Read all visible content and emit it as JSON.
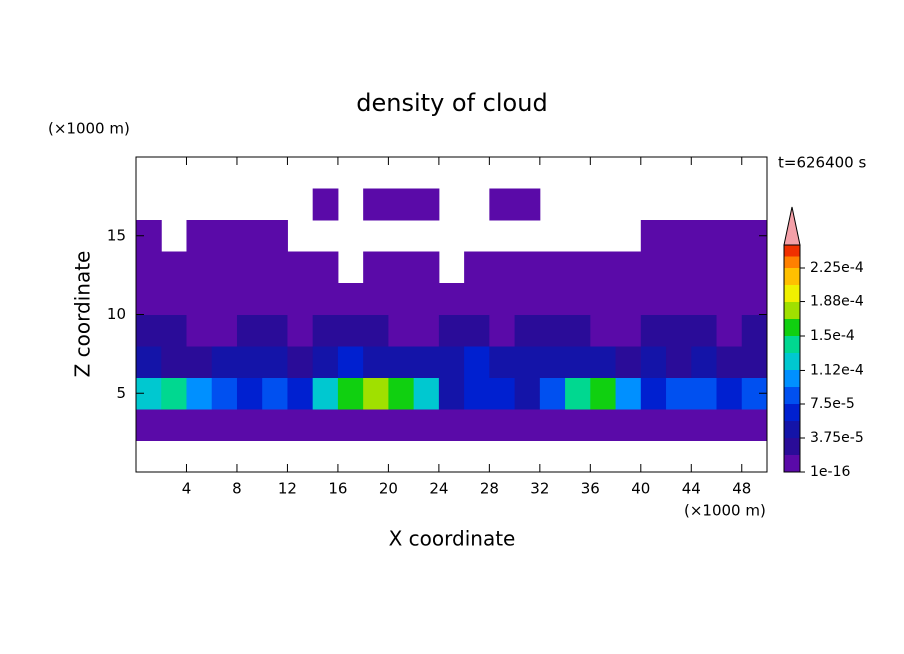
{
  "chart_data": {
    "type": "contour",
    "title": "density of cloud",
    "time_label": "t=626400 s",
    "x_label": "X coordinate",
    "y_label": "Z coordinate",
    "x_unit": "(×1000 m)",
    "y_unit": "(×1000 m)",
    "xlim": [
      0,
      50
    ],
    "ylim": [
      0,
      20
    ],
    "xticks": [
      4,
      8,
      12,
      16,
      20,
      24,
      28,
      32,
      36,
      40,
      44,
      48
    ],
    "yticks": [
      5,
      10,
      15
    ],
    "x": [
      1,
      3,
      5,
      7,
      9,
      11,
      13,
      15,
      17,
      19,
      21,
      23,
      25,
      27,
      29,
      31,
      33,
      35,
      37,
      39,
      41,
      43,
      45,
      47,
      49
    ],
    "y": [
      1,
      3,
      5,
      7,
      9,
      11,
      13,
      15,
      17,
      19
    ],
    "z": [
      [
        null,
        null,
        null,
        null,
        null,
        null,
        null,
        null,
        null,
        null,
        null,
        null,
        null,
        null,
        null,
        null,
        null,
        null,
        null,
        null,
        null,
        null,
        null,
        null,
        null
      ],
      [
        5e-06,
        5e-06,
        5e-06,
        5e-06,
        5e-06,
        5e-06,
        5e-06,
        5e-06,
        5e-06,
        5e-06,
        5e-06,
        5e-06,
        5e-06,
        5e-06,
        5e-06,
        5e-06,
        5e-06,
        5e-06,
        5e-06,
        5e-06,
        5e-06,
        5e-06,
        5e-06,
        5e-06,
        5e-06
      ],
      [
        0.00013,
        0.00014,
        0.0001,
        8e-05,
        7e-05,
        9e-05,
        6e-05,
        0.00012,
        0.00016,
        0.00017,
        0.00016,
        0.00012,
        5e-05,
        7e-05,
        6e-05,
        5e-05,
        8e-05,
        0.00014,
        0.00015,
        0.0001,
        7e-05,
        8e-05,
        9e-05,
        6e-05,
        9e-05
      ],
      [
        4e-05,
        3e-05,
        3e-05,
        4e-05,
        5e-05,
        4e-05,
        3e-05,
        5e-05,
        6e-05,
        5e-05,
        5e-05,
        4e-05,
        4e-05,
        6e-05,
        5e-05,
        4e-05,
        5e-05,
        5e-05,
        4e-05,
        3e-05,
        4e-05,
        3e-05,
        4e-05,
        3e-05,
        3e-05
      ],
      [
        2e-05,
        2e-05,
        1e-05,
        1e-05,
        2e-05,
        2e-05,
        1e-05,
        2e-05,
        2e-05,
        2e-05,
        1e-05,
        1e-05,
        2e-05,
        2e-05,
        1e-05,
        2e-05,
        2e-05,
        2e-05,
        1e-05,
        1e-05,
        2e-05,
        2e-05,
        2e-05,
        1e-05,
        2e-05
      ],
      [
        5e-06,
        5e-06,
        5e-06,
        5e-06,
        1.5e-05,
        5e-06,
        5e-06,
        5e-06,
        5e-06,
        5e-06,
        5e-06,
        5e-06,
        5e-06,
        5e-06,
        5e-06,
        5e-06,
        5e-06,
        5e-06,
        5e-06,
        5e-06,
        5e-06,
        5e-06,
        5e-06,
        5e-06,
        5e-06
      ],
      [
        5e-06,
        5e-06,
        5e-06,
        5e-06,
        5e-06,
        5e-06,
        5e-06,
        5e-06,
        null,
        5e-06,
        5e-06,
        5e-06,
        null,
        5e-06,
        5e-06,
        5e-06,
        5e-06,
        5e-06,
        5e-06,
        5e-06,
        5e-06,
        5e-06,
        5e-06,
        5e-06,
        5e-06
      ],
      [
        5e-06,
        null,
        5e-06,
        5e-06,
        5e-06,
        5e-06,
        null,
        null,
        null,
        null,
        null,
        null,
        null,
        null,
        null,
        null,
        null,
        null,
        null,
        null,
        5e-06,
        5e-06,
        5e-06,
        5e-06,
        5e-06
      ],
      [
        null,
        null,
        null,
        null,
        null,
        null,
        null,
        5e-06,
        null,
        5e-06,
        5e-06,
        5e-06,
        null,
        null,
        5e-06,
        5e-06,
        null,
        null,
        null,
        null,
        null,
        null,
        null,
        null,
        null
      ],
      [
        null,
        null,
        null,
        null,
        null,
        null,
        null,
        null,
        null,
        null,
        null,
        null,
        null,
        null,
        null,
        null,
        null,
        null,
        null,
        null,
        null,
        null,
        null,
        null,
        null
      ]
    ],
    "colorbar": {
      "ticks": [
        1e-16,
        {
          "value": 3.75e-05,
          "label": "3.75e-5"
        },
        {
          "value": 7.5e-05,
          "label": "7.5e-5"
        },
        {
          "value": 0.000112,
          "label": "1.12e-4"
        },
        {
          "value": 0.00015,
          "label": "1.5e-4"
        },
        {
          "value": 0.000188,
          "label": "1.88e-4"
        },
        {
          "value": 0.000225,
          "label": "2.25e-4"
        }
      ],
      "colors": [
        "#5a0aa8",
        "#2a0c98",
        "#1414a8",
        "#0020d0",
        "#0050f0",
        "#0090ff",
        "#00c8d0",
        "#00d890",
        "#10d010",
        "#a0e000",
        "#f0f000",
        "#ffc000",
        "#ff8000",
        "#f03000"
      ],
      "extend_color": "#f4a0a8"
    }
  }
}
